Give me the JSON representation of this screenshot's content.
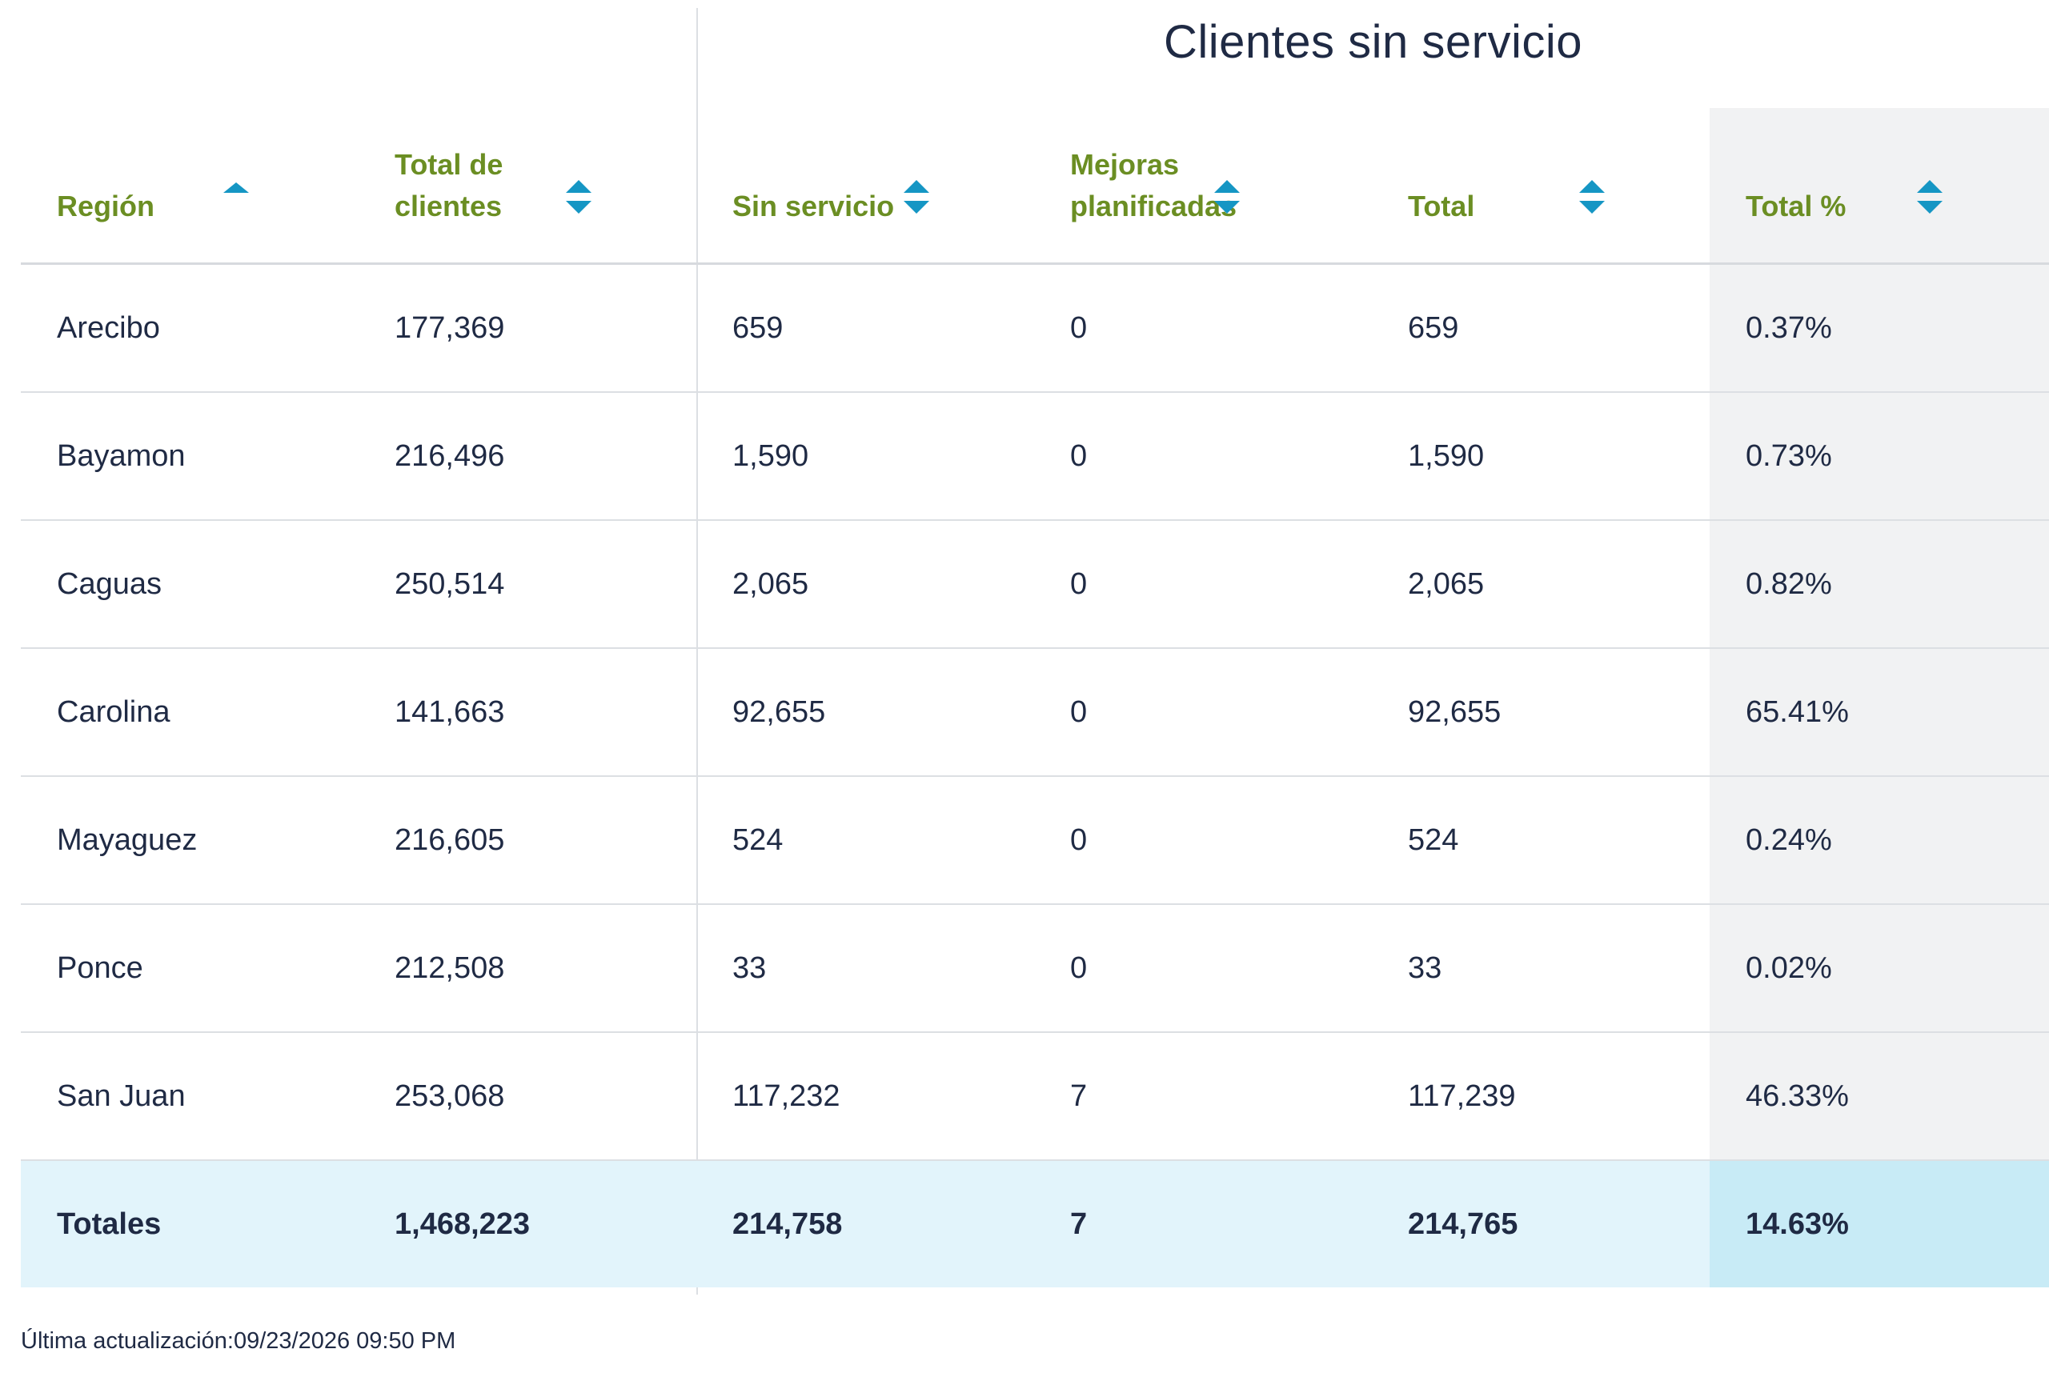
{
  "group_header": "Clientes sin servicio",
  "columns": [
    {
      "label": "Región",
      "sort": "asc"
    },
    {
      "label": "Total de clientes",
      "sort": "both"
    },
    {
      "label": "Sin servicio",
      "sort": "both"
    },
    {
      "label": "Mejoras planificadas",
      "sort": "both"
    },
    {
      "label": "Total",
      "sort": "both"
    },
    {
      "label": "Total %",
      "sort": "both"
    }
  ],
  "rows": [
    {
      "region": "Arecibo",
      "total_clientes": "177,369",
      "sin_servicio": "659",
      "mejoras": "0",
      "total": "659",
      "total_pct": "0.37%"
    },
    {
      "region": "Bayamon",
      "total_clientes": "216,496",
      "sin_servicio": "1,590",
      "mejoras": "0",
      "total": "1,590",
      "total_pct": "0.73%"
    },
    {
      "region": "Caguas",
      "total_clientes": "250,514",
      "sin_servicio": "2,065",
      "mejoras": "0",
      "total": "2,065",
      "total_pct": "0.82%"
    },
    {
      "region": "Carolina",
      "total_clientes": "141,663",
      "sin_servicio": "92,655",
      "mejoras": "0",
      "total": "92,655",
      "total_pct": "65.41%"
    },
    {
      "region": "Mayaguez",
      "total_clientes": "216,605",
      "sin_servicio": "524",
      "mejoras": "0",
      "total": "524",
      "total_pct": "0.24%"
    },
    {
      "region": "Ponce",
      "total_clientes": "212,508",
      "sin_servicio": "33",
      "mejoras": "0",
      "total": "33",
      "total_pct": "0.02%"
    },
    {
      "region": "San Juan",
      "total_clientes": "253,068",
      "sin_servicio": "117,232",
      "mejoras": "7",
      "total": "117,239",
      "total_pct": "46.33%"
    }
  ],
  "totals": {
    "region": "Totales",
    "total_clientes": "1,468,223",
    "sin_servicio": "214,758",
    "mejoras": "7",
    "total": "214,765",
    "total_pct": "14.63%"
  },
  "footer": {
    "last_updated": "Última actualización:09/23/2026 09:50 PM"
  },
  "colors": {
    "header_text": "#6b8e23",
    "sort_icon": "#1596c4",
    "body_text": "#1f2a44",
    "total_row_bg": "#e2f4fb",
    "shaded_col_bg": "#f1f2f3"
  }
}
